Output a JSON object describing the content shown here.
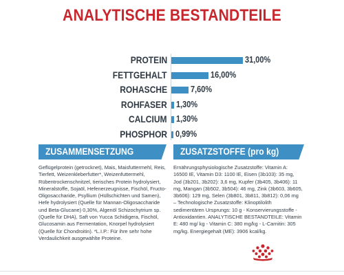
{
  "title": "ANALYTISCHE BESTANDTEILE",
  "chart_data": {
    "type": "bar",
    "orientation": "horizontal",
    "categories": [
      "PROTEIN",
      "FETTGEHALT",
      "ROHASCHE",
      "ROHFASER",
      "CALCIUM",
      "PHOSPHOR"
    ],
    "values": [
      31.0,
      16.0,
      7.6,
      1.3,
      1.3,
      0.99
    ],
    "value_labels": [
      "31,00%",
      "16,00%",
      "7,60%",
      "1,30%",
      "1,30%",
      "0,99%"
    ],
    "xlim": [
      0,
      31.0
    ],
    "grid": false,
    "bar_color": "#3d8fc4"
  },
  "composition": {
    "header": "ZUSAMMENSETZUNG",
    "text": "Geflügelprotein (getrocknet), Mais, Maisfuttermehl, Reis, Tierfett, Weizenkleberfutter*, Weizenfuttermehl, Rübentrockenschnitzel, tierisches Protein hydrolysiert, Mineralstoffe, Sojaöl, Hefenerzeugnisse, Fischöl, Fructo-Oligosaccharide, Psyllium (Hüllschichten und Samen), Hefe hydrolysiert (Quelle für Mannan-Oligosaccharide und Beta-Glucane) 0,30%, Algenöl Schizochytrium sp. (Quelle für DHA), Saft von Yucca Schidigera, Fischöl, Glucosamin aus Fermentation, Knorpel hydrolysiert (Quelle für Chondroitin). *L.I.P.: Für ihre sehr hohe Verdaulichkeit ausgewählte Proteine."
  },
  "additives": {
    "header": "ZUSATZSTOFFE (pro kg)",
    "text": "Ernährungsphysiologische Zusatzstoffe: Vitamin A: 16500 IE, Vitamin D3: 1100 IE, Eisen (3b103): 35 mg, Jod (3b201, 3b202): 3,6 mg, Kupfer (3b405, 3b406): 11 mg, Mangan (3b502, 3b504): 46 mg, Zink (3b603, 3b605, 3b606): 129 mg, Selen (3b801, 3b811, 3b812): 0,06 mg – Technologische Zusatzstoffe: Klinoptilolith sedimentären Ursprungs: 10 g - Konservierungsstoffe - Antioxidantien. ANALYTISCHE BESTANDTEILE: Vitamin E: 480 mg/ kg - Vitamin C: 380 mg/kg - L-Carnitin: 305 mg/kg. Energiegehalt (ME): 3906 kcal/kg."
  },
  "colors": {
    "title": "#c8262d",
    "accent_blue": "#3d8fc4",
    "logo_red": "#c8262d"
  },
  "logo": {
    "icon": "crown-logo-icon"
  }
}
